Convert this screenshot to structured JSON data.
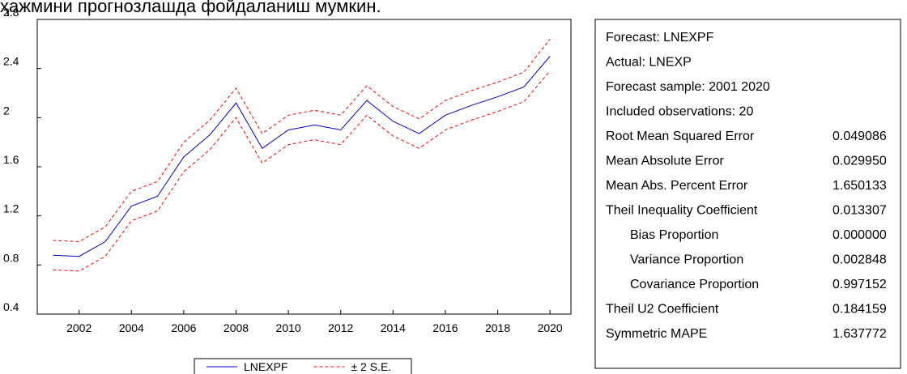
{
  "top_text": "ҳажмини прогнозлашда фойдаланиш мумкин.",
  "chart_data": {
    "type": "line",
    "x": [
      2001,
      2002,
      2003,
      2004,
      2005,
      2006,
      2007,
      2008,
      2009,
      2010,
      2011,
      2012,
      2013,
      2014,
      2015,
      2016,
      2017,
      2018,
      2019,
      2020
    ],
    "series": [
      {
        "name": "LNEXPF",
        "color": "#0000cc",
        "values": [
          0.88,
          0.87,
          0.99,
          1.28,
          1.36,
          1.68,
          1.86,
          2.12,
          1.75,
          1.9,
          1.94,
          1.9,
          2.14,
          1.97,
          1.87,
          2.02,
          2.1,
          2.17,
          2.25,
          2.5
        ]
      },
      {
        "name": "± 2 S.E.",
        "color": "#ff0000",
        "dashed": true,
        "values": [
          1.0,
          0.99,
          1.11,
          1.4,
          1.48,
          1.8,
          1.98,
          2.24,
          1.87,
          2.02,
          2.06,
          2.02,
          2.26,
          2.09,
          1.99,
          2.14,
          2.22,
          2.29,
          2.37,
          2.64
        ],
        "lower": [
          0.76,
          0.75,
          0.87,
          1.16,
          1.24,
          1.56,
          1.74,
          2.0,
          1.63,
          1.78,
          1.82,
          1.78,
          2.02,
          1.85,
          1.75,
          1.9,
          1.98,
          2.05,
          2.13,
          2.38
        ]
      }
    ],
    "xlim": [
      2000.4,
      2020.8
    ],
    "xticks": [
      2002,
      2004,
      2006,
      2008,
      2010,
      2012,
      2014,
      2016,
      2018,
      2020
    ],
    "ylim": [
      0.4,
      2.8
    ],
    "yticks": [
      0.4,
      0.8,
      1.2,
      1.6,
      2.0,
      2.4,
      2.8
    ],
    "legend": "bottom"
  },
  "stats": {
    "header": [
      "Forecast: LNEXPF",
      "Actual: LNEXP",
      "Forecast sample: 2001 2020",
      "Included observations: 20"
    ],
    "rows": [
      {
        "label": "Root Mean Squared Error",
        "value": "0.049086"
      },
      {
        "label": "Mean Absolute Error",
        "value": "0.029950"
      },
      {
        "label": "Mean Abs. Percent Error",
        "value": "1.650133"
      },
      {
        "label": "Theil Inequality Coefficient",
        "value": "0.013307",
        "components": [
          {
            "label": "Bias Proportion",
            "value": "0.000000"
          },
          {
            "label": "Variance Proportion",
            "value": "0.002848"
          },
          {
            "label": "Covariance Proportion",
            "value": "0.997152"
          }
        ]
      },
      {
        "label": "Theil U2 Coefficient",
        "value": "0.184159"
      },
      {
        "label": "Symmetric MAPE",
        "value": "1.637772"
      }
    ]
  }
}
